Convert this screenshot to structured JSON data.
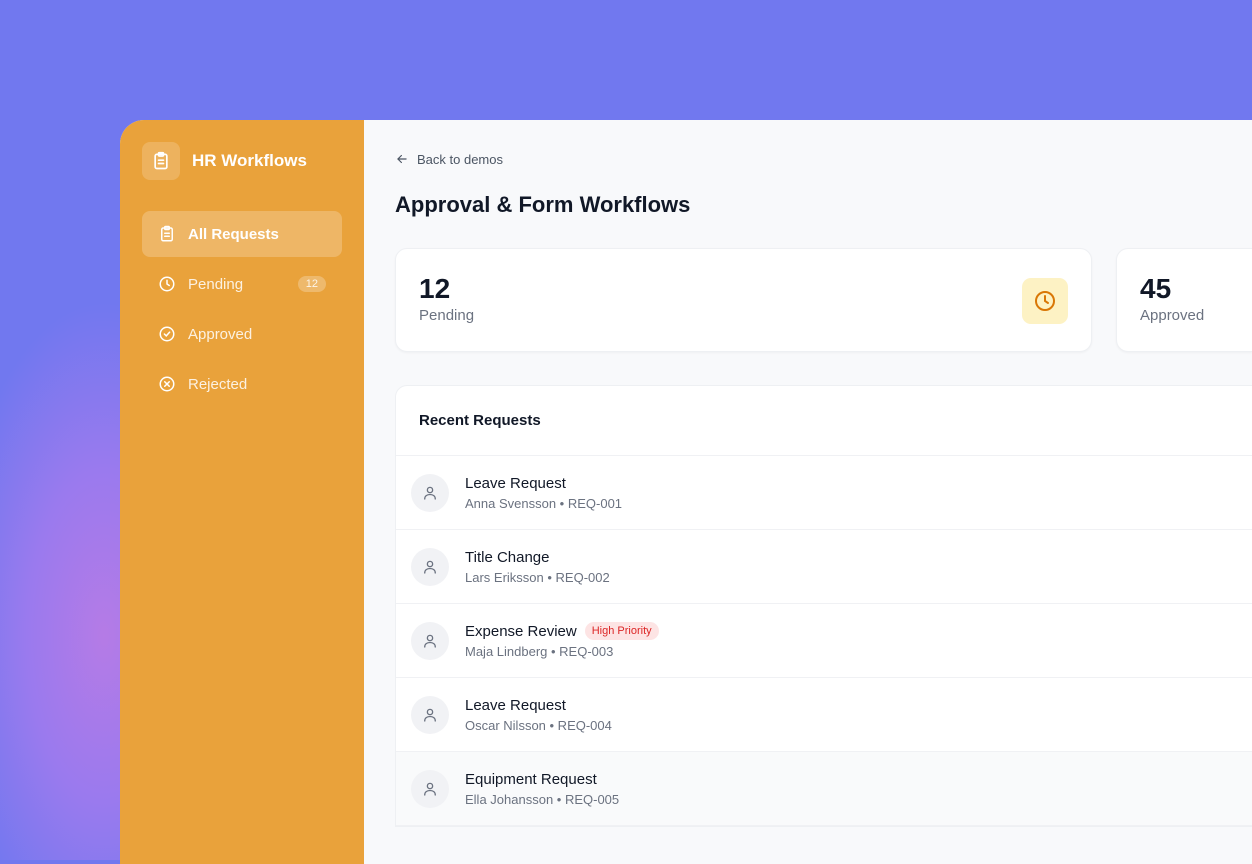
{
  "app": {
    "title": "HR Workflows"
  },
  "sidebar": {
    "items": [
      {
        "label": "All Requests",
        "icon": "clipboard-icon",
        "active": true
      },
      {
        "label": "Pending",
        "icon": "clock-icon",
        "badge": "12"
      },
      {
        "label": "Approved",
        "icon": "check-circle-icon"
      },
      {
        "label": "Rejected",
        "icon": "x-circle-icon"
      }
    ]
  },
  "header": {
    "back": "Back to demos",
    "title": "Approval & Form Workflows"
  },
  "stats": [
    {
      "value": "12",
      "label": "Pending"
    },
    {
      "value": "45",
      "label": "Approved"
    }
  ],
  "recent": {
    "title": "Recent Requests",
    "rows": [
      {
        "title": "Leave Request",
        "sub": "Anna Svensson • REQ-001"
      },
      {
        "title": "Title Change",
        "sub": "Lars Eriksson • REQ-002"
      },
      {
        "title": "Expense Review",
        "sub": "Maja Lindberg • REQ-003",
        "tag": "High Priority"
      },
      {
        "title": "Leave Request",
        "sub": "Oscar Nilsson • REQ-004"
      },
      {
        "title": "Equipment Request",
        "sub": "Ella Johansson • REQ-005"
      }
    ]
  },
  "colors": {
    "sidebar": "#e9a23b",
    "background": "#7178ef",
    "priority": "#dc2626"
  }
}
